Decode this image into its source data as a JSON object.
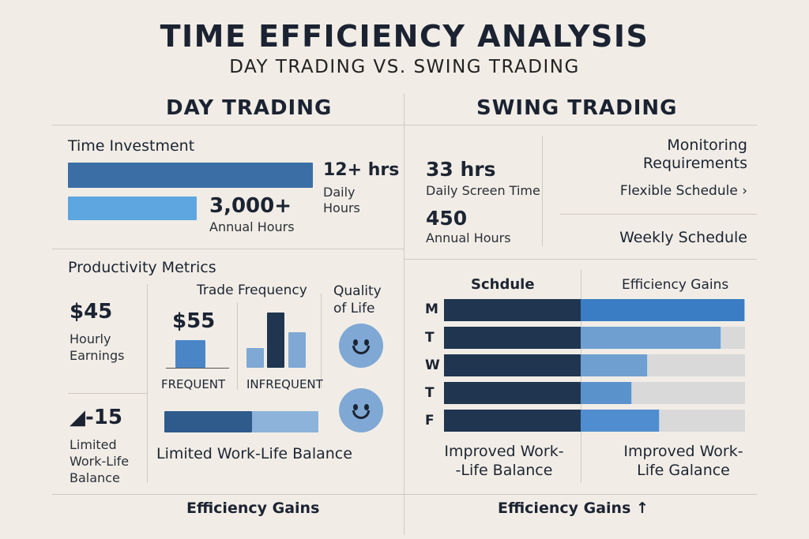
{
  "header": {
    "title": "TIME EFFICIENCY ANALYSIS",
    "subtitle": "DAY TRADING VS. SWING TRADING"
  },
  "day": {
    "heading": "DAY TRADING",
    "time_investment": {
      "label": "Time Investment",
      "daily_value": "12+ hrs",
      "daily_label_1": "Daily",
      "daily_label_2": "Hours",
      "annual_value": "3,000+",
      "annual_label": "Annual Hours"
    },
    "productivity": {
      "label": "Productivity Metrics",
      "hourly_value": "$45",
      "hourly_label_1": "Hourly",
      "hourly_label_2": "Earnings",
      "limited_value": "◢-15",
      "limited_label_1": "Limited",
      "limited_label_2": "Work-Life",
      "limited_label_3": "Balance",
      "trade_freq_label": "Trade Frequency",
      "trade_value": "$55",
      "frequent_label": "FREQUENT",
      "infrequent_label": "INFREQUENT",
      "quality_label_1": "Quality",
      "quality_label_2": "of Life",
      "worklife_label": "Limited Work-Life Balance"
    },
    "footer": "Efficiency Gains"
  },
  "swing": {
    "heading": "SWING TRADING",
    "daily_value": "33 hrs",
    "daily_label": "Daily Screen Time",
    "annual_value": "450",
    "annual_label": "Annual Hours",
    "monitoring_1": "Monitoring",
    "monitoring_2": "Requirements",
    "flexible": "Flexible Schedule ›",
    "weekly": "Weekly Schedule",
    "schedule_label": "Schdule",
    "efficiency_label": "Efficiency Gains",
    "days": [
      "M",
      "T",
      "W",
      "T",
      "F"
    ],
    "improved_left_1": "Improved Work-",
    "improved_left_2": "-Life Balance",
    "improved_right_1": "Improved Work-",
    "improved_right_2": "Life Galance",
    "footer": "Efficiency Gains ↑"
  },
  "colors": {
    "dark_navy": "#1f3550",
    "mid_blue": "#3a6ea5",
    "light_blue": "#5da6e0",
    "pale_blue": "#6f9fd0",
    "gray": "#d9d9d9",
    "background": "#f1ede6"
  }
}
